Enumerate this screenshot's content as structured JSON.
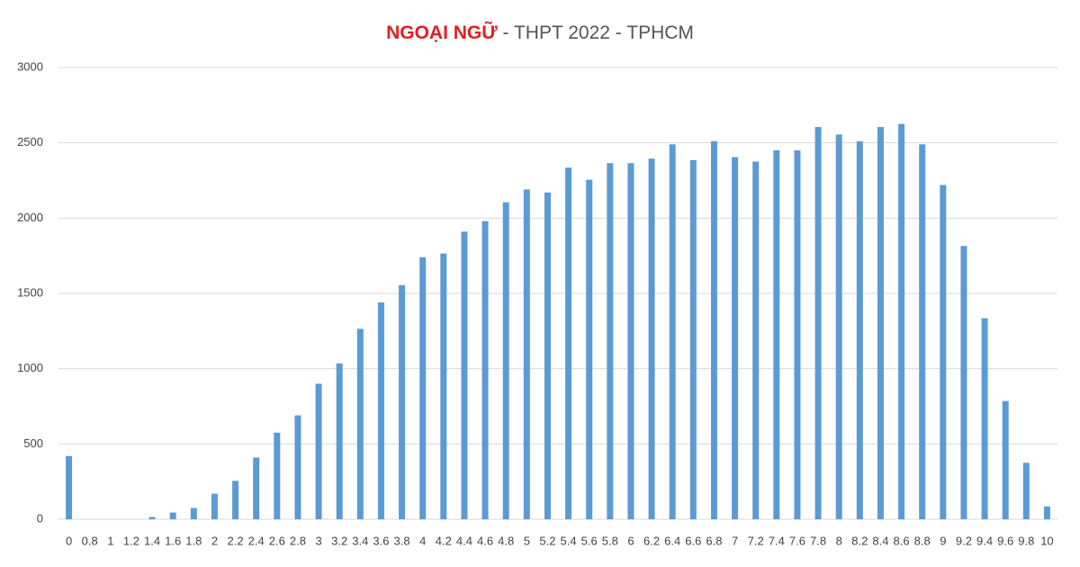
{
  "chart_data": {
    "type": "bar",
    "title": {
      "highlight": "NGOẠI NGỮ",
      "rest": "- THPT 2022 - TPHCM"
    },
    "categories": [
      "0",
      "0.8",
      "1",
      "1.2",
      "1.4",
      "1.6",
      "1.8",
      "2",
      "2.2",
      "2.4",
      "2.6",
      "2.8",
      "3",
      "3.2",
      "3.4",
      "3.6",
      "3.8",
      "4",
      "4.2",
      "4.4",
      "4.6",
      "4.8",
      "5",
      "5.2",
      "5.4",
      "5.6",
      "5.8",
      "6",
      "6.2",
      "6.4",
      "6.6",
      "6.8",
      "7",
      "7.2",
      "7.4",
      "7.6",
      "7.8",
      "8",
      "8.2",
      "8.4",
      "8.6",
      "8.8",
      "9",
      "9.2",
      "9.4",
      "9.6",
      "9.8",
      "10"
    ],
    "values": [
      420,
      0,
      0,
      0,
      15,
      45,
      75,
      170,
      255,
      410,
      575,
      690,
      900,
      1035,
      1265,
      1440,
      1555,
      1740,
      1765,
      1910,
      1980,
      2105,
      2190,
      2170,
      2335,
      2255,
      2365,
      2365,
      2395,
      2490,
      2385,
      2510,
      2405,
      2375,
      2450,
      2450,
      2605,
      2555,
      2510,
      2605,
      2625,
      2490,
      2220,
      1815,
      1335,
      785,
      375,
      85
    ],
    "color": "#5b9bd5",
    "ylim": [
      0,
      3000
    ],
    "yticks": [
      0,
      500,
      1000,
      1500,
      2000,
      2500,
      3000
    ],
    "grid": true
  }
}
